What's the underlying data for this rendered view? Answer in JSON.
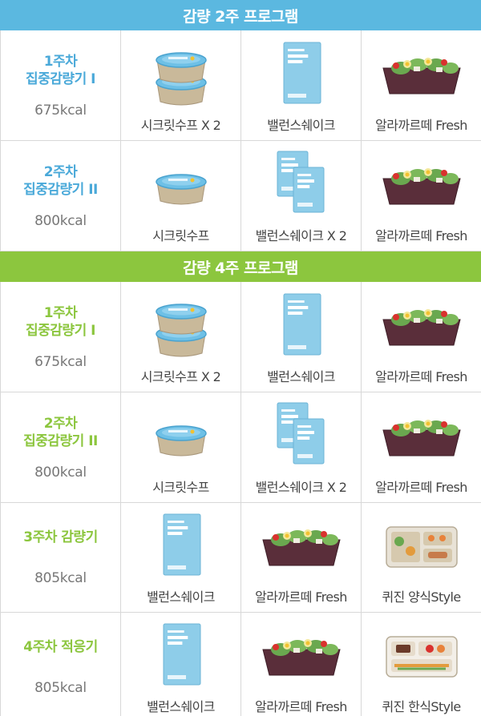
{
  "sections": [
    {
      "title": "감량 2주 프로그램",
      "rows": [
        {
          "week": [
            "1주차",
            "집중감량기 I"
          ],
          "kcal": "675kcal",
          "items": [
            {
              "name": "시크릿수프 X 2",
              "icon": "soup-cup-double"
            },
            {
              "name": "밸런스쉐이크",
              "icon": "shake-pouch-single"
            },
            {
              "name": "알라까르떼 Fresh",
              "icon": "salad-tray"
            }
          ]
        },
        {
          "week": [
            "2주차",
            "집중감량기 II"
          ],
          "kcal": "800kcal",
          "items": [
            {
              "name": "시크릿수프",
              "icon": "soup-cup-single"
            },
            {
              "name": "밸런스쉐이크 X 2",
              "icon": "shake-pouch-double"
            },
            {
              "name": "알라까르떼 Fresh",
              "icon": "salad-tray"
            }
          ]
        }
      ]
    },
    {
      "title": "감량 4주 프로그램",
      "rows": [
        {
          "week": [
            "1주차",
            "집중감량기 I"
          ],
          "kcal": "675kcal",
          "items": [
            {
              "name": "시크릿수프 X 2",
              "icon": "soup-cup-double"
            },
            {
              "name": "밸런스쉐이크",
              "icon": "shake-pouch-single"
            },
            {
              "name": "알라까르떼 Fresh",
              "icon": "salad-tray"
            }
          ]
        },
        {
          "week": [
            "2주차",
            "집중감량기 II"
          ],
          "kcal": "800kcal",
          "items": [
            {
              "name": "시크릿수프",
              "icon": "soup-cup-single"
            },
            {
              "name": "밸런스쉐이크 X 2",
              "icon": "shake-pouch-double"
            },
            {
              "name": "알라까르떼 Fresh",
              "icon": "salad-tray"
            }
          ]
        },
        {
          "week": [
            "3주차 감량기"
          ],
          "kcal": "805kcal",
          "items": [
            {
              "name": "밸런스쉐이크",
              "icon": "shake-pouch-single"
            },
            {
              "name": "알라까르떼 Fresh",
              "icon": "salad-tray"
            },
            {
              "name": "퀴진 양식Style",
              "icon": "meal-box-western"
            }
          ]
        },
        {
          "week": [
            "4주차 적응기"
          ],
          "kcal": "805kcal",
          "items": [
            {
              "name": "밸런스쉐이크",
              "icon": "shake-pouch-single"
            },
            {
              "name": "알라까르떼 Fresh",
              "icon": "salad-tray"
            },
            {
              "name": "퀴진 한식Style",
              "icon": "meal-box-korean"
            }
          ]
        }
      ]
    }
  ],
  "colors": {
    "blue": "#5bb8e0",
    "green": "#8cc63e",
    "label_blue": "#4aa9d9"
  }
}
